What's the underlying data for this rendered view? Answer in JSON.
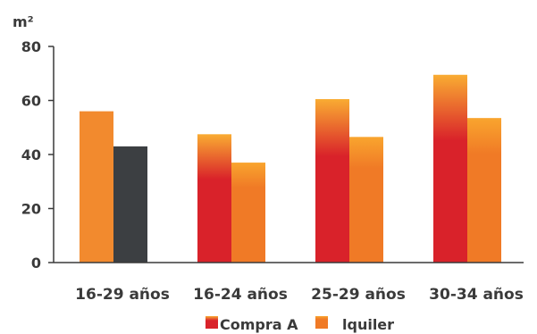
{
  "chart_data": {
    "type": "bar",
    "ylabel": "m²",
    "ylim": [
      0,
      80
    ],
    "yticks": [
      0,
      20,
      40,
      60,
      80
    ],
    "grid": false,
    "legend_position": "bottom",
    "categories": [
      "16-29 años",
      "16-24 años",
      "25-29 años",
      "30-34 años"
    ],
    "series": [
      {
        "name": "Compra A",
        "values": [
          56,
          47.5,
          60.5,
          69.5
        ]
      },
      {
        "name": "lquiler",
        "values": [
          43,
          37,
          46.5,
          53.5
        ]
      }
    ],
    "colors": {
      "axis": "#3a3a3a",
      "compra_top": "#f9ac32",
      "compra_bottom": "#d9222a",
      "alquiler_top": "#f9a52e",
      "alquiler_bottom": "#f07a26",
      "first_bar_compra": "#f28a2e",
      "first_bar_alquiler": "#3c3f42"
    }
  }
}
